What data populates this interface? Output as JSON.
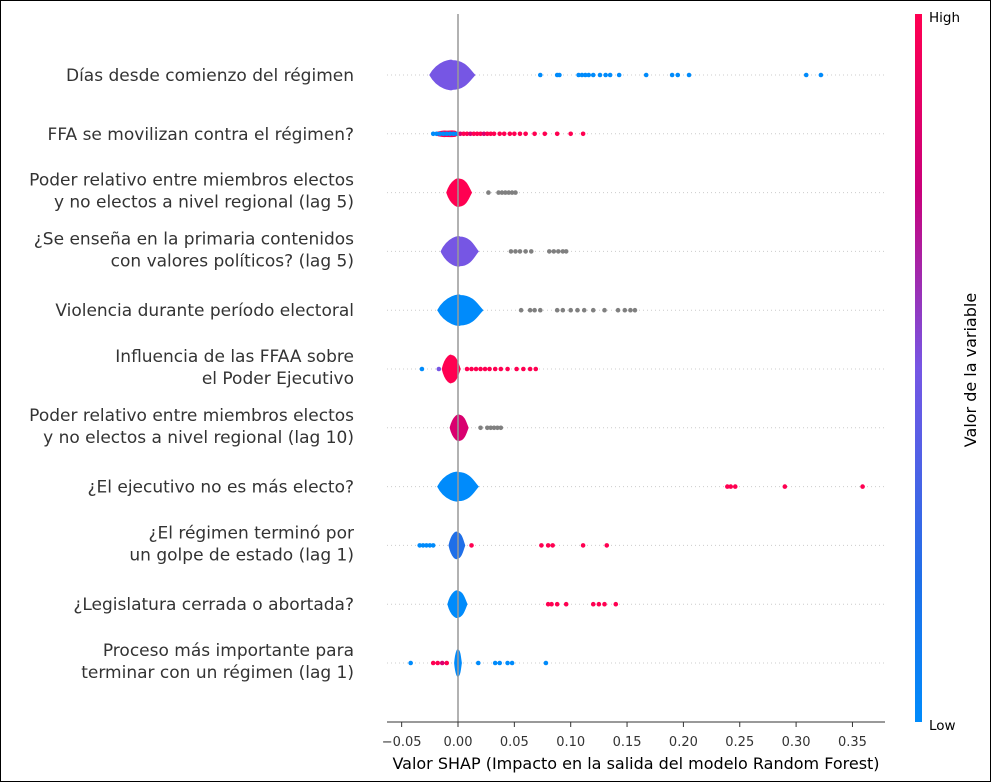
{
  "chart_data": {
    "type": "scatter",
    "subtype": "shap-violin-summary",
    "title": "",
    "xlabel": "Valor SHAP (Impacto en la salida del modelo Random Forest)",
    "ylabel": "",
    "xlim": [
      -0.065,
      0.38
    ],
    "xticks": [
      -0.05,
      0.0,
      0.05,
      0.1,
      0.15,
      0.2,
      0.25,
      0.3,
      0.35
    ],
    "xtick_labels": [
      "−0.05",
      "0.00",
      "0.05",
      "0.10",
      "0.15",
      "0.20",
      "0.25",
      "0.30",
      "0.35"
    ],
    "grid": false,
    "colorbar": {
      "title": "Valor de la variable",
      "high": "High",
      "low": "Low",
      "low_color": "#008bfb",
      "high_color": "#ff0051"
    },
    "features": [
      {
        "label": [
          "Días desde comienzo del régimen"
        ],
        "violin_color": "#7656e4",
        "violin_range": [
          -0.025,
          0.015
        ],
        "violin_width": 0.8,
        "points": [
          [
            0.073,
            "#008bfb"
          ],
          [
            0.088,
            "#008bfb"
          ],
          [
            0.09,
            "#008bfb"
          ],
          [
            0.107,
            "#008bfb"
          ],
          [
            0.11,
            "#008bfb"
          ],
          [
            0.113,
            "#008bfb"
          ],
          [
            0.116,
            "#008bfb"
          ],
          [
            0.12,
            "#008bfb"
          ],
          [
            0.126,
            "#008bfb"
          ],
          [
            0.131,
            "#008bfb"
          ],
          [
            0.135,
            "#008bfb"
          ],
          [
            0.143,
            "#008bfb"
          ],
          [
            0.167,
            "#008bfb"
          ],
          [
            0.19,
            "#008bfb"
          ],
          [
            0.195,
            "#008bfb"
          ],
          [
            0.205,
            "#008bfb"
          ],
          [
            0.309,
            "#008bfb"
          ],
          [
            0.322,
            "#008bfb"
          ]
        ]
      },
      {
        "label": [
          "FFA se movilizan contra el régimen?"
        ],
        "violin_color": "#ff0051",
        "violin_range": [
          -0.022,
          0.0
        ],
        "violin_width": 0.15,
        "points": [
          [
            -0.022,
            "#008bfb"
          ],
          [
            -0.019,
            "#008bfb"
          ],
          [
            -0.016,
            "#008bfb"
          ],
          [
            -0.013,
            "#008bfb"
          ],
          [
            -0.01,
            "#008bfb"
          ],
          [
            -0.007,
            "#008bfb"
          ],
          [
            -0.004,
            "#008bfb"
          ],
          [
            -0.001,
            "#008bfb"
          ],
          [
            0.002,
            "#d9006f"
          ],
          [
            0.005,
            "#ff0051"
          ],
          [
            0.008,
            "#ff0051"
          ],
          [
            0.011,
            "#d9006f"
          ],
          [
            0.014,
            "#ff0051"
          ],
          [
            0.017,
            "#ff0051"
          ],
          [
            0.02,
            "#ff0051"
          ],
          [
            0.023,
            "#d9006f"
          ],
          [
            0.026,
            "#ff0051"
          ],
          [
            0.029,
            "#ff0051"
          ],
          [
            0.032,
            "#ff0051"
          ],
          [
            0.037,
            "#ff0051"
          ],
          [
            0.041,
            "#ff0051"
          ],
          [
            0.046,
            "#ff0051"
          ],
          [
            0.05,
            "#ff0051"
          ],
          [
            0.055,
            "#ff0051"
          ],
          [
            0.06,
            "#ff0051"
          ],
          [
            0.068,
            "#ff0051"
          ],
          [
            0.077,
            "#ff0051"
          ],
          [
            0.088,
            "#ff0051"
          ],
          [
            0.1,
            "#ff0051"
          ],
          [
            0.111,
            "#ff0051"
          ]
        ]
      },
      {
        "label": [
          "Poder relativo entre miembros electos",
          "y no electos a nivel regional (lag 5)"
        ],
        "violin_color": "#ff0051",
        "violin_range": [
          -0.01,
          0.012
        ],
        "violin_width": 0.75,
        "points": [
          [
            0.027,
            "#808080"
          ],
          [
            0.036,
            "#808080"
          ],
          [
            0.039,
            "#808080"
          ],
          [
            0.042,
            "#808080"
          ],
          [
            0.045,
            "#808080"
          ],
          [
            0.048,
            "#808080"
          ],
          [
            0.051,
            "#808080"
          ]
        ]
      },
      {
        "label": [
          "¿Se enseña en la primaria contenidos",
          "con valores políticos? (lag 5)"
        ],
        "violin_color": "#7656e4",
        "violin_range": [
          -0.015,
          0.018
        ],
        "violin_width": 0.8,
        "points": [
          [
            0.047,
            "#808080"
          ],
          [
            0.051,
            "#808080"
          ],
          [
            0.055,
            "#808080"
          ],
          [
            0.06,
            "#808080"
          ],
          [
            0.065,
            "#808080"
          ],
          [
            0.081,
            "#808080"
          ],
          [
            0.085,
            "#808080"
          ],
          [
            0.089,
            "#808080"
          ],
          [
            0.093,
            "#808080"
          ],
          [
            0.096,
            "#808080"
          ]
        ]
      },
      {
        "label": [
          "Violencia durante período electoral"
        ],
        "violin_color": "#008bfb",
        "violin_range": [
          -0.018,
          0.022
        ],
        "violin_width": 0.82,
        "points": [
          [
            0.056,
            "#808080"
          ],
          [
            0.064,
            "#808080"
          ],
          [
            0.068,
            "#808080"
          ],
          [
            0.073,
            "#808080"
          ],
          [
            0.088,
            "#808080"
          ],
          [
            0.093,
            "#808080"
          ],
          [
            0.1,
            "#808080"
          ],
          [
            0.106,
            "#808080"
          ],
          [
            0.112,
            "#808080"
          ],
          [
            0.12,
            "#808080"
          ],
          [
            0.13,
            "#808080"
          ],
          [
            0.142,
            "#808080"
          ],
          [
            0.148,
            "#808080"
          ],
          [
            0.153,
            "#808080"
          ],
          [
            0.157,
            "#808080"
          ]
        ]
      },
      {
        "label": [
          "Influencia de las FFAA sobre",
          "el Poder Ejecutivo"
        ],
        "violin_color": "#ff0051",
        "violin_range": [
          -0.014,
          0.002
        ],
        "violin_width": 0.75,
        "points": [
          [
            -0.032,
            "#008bfb"
          ],
          [
            -0.017,
            "#7656e4"
          ],
          [
            0.008,
            "#ff0051"
          ],
          [
            0.012,
            "#ff0051"
          ],
          [
            0.016,
            "#ff0051"
          ],
          [
            0.02,
            "#ff0051"
          ],
          [
            0.024,
            "#ff0051"
          ],
          [
            0.028,
            "#ff0051"
          ],
          [
            0.033,
            "#ff0051"
          ],
          [
            0.038,
            "#ff0051"
          ],
          [
            0.044,
            "#ff0051"
          ],
          [
            0.052,
            "#ff0051"
          ],
          [
            0.058,
            "#ff0051"
          ],
          [
            0.064,
            "#ff0051"
          ],
          [
            0.069,
            "#ff0051"
          ]
        ]
      },
      {
        "label": [
          "Poder relativo entre miembros electos",
          "y no electos a nivel regional (lag 10)"
        ],
        "violin_color": "#d9006f",
        "violin_range": [
          -0.007,
          0.009
        ],
        "violin_width": 0.7,
        "points": [
          [
            0.02,
            "#808080"
          ],
          [
            0.026,
            "#808080"
          ],
          [
            0.029,
            "#808080"
          ],
          [
            0.032,
            "#808080"
          ],
          [
            0.035,
            "#808080"
          ],
          [
            0.038,
            "#808080"
          ]
        ]
      },
      {
        "label": [
          "¿El ejecutivo no es más electo?"
        ],
        "violin_color": "#008bfb",
        "violin_range": [
          -0.018,
          0.018
        ],
        "violin_width": 0.78,
        "points": [
          [
            0.239,
            "#ff0051"
          ],
          [
            0.242,
            "#ff0051"
          ],
          [
            0.246,
            "#ff0051"
          ],
          [
            0.29,
            "#ff0051"
          ],
          [
            0.359,
            "#ff0051"
          ]
        ]
      },
      {
        "label": [
          "¿El régimen terminó por",
          "un golpe de estado (lag 1)"
        ],
        "violin_color": "#1f6fe8",
        "violin_range": [
          -0.008,
          0.006
        ],
        "violin_width": 0.72,
        "points": [
          [
            -0.034,
            "#008bfb"
          ],
          [
            -0.031,
            "#008bfb"
          ],
          [
            -0.028,
            "#008bfb"
          ],
          [
            -0.025,
            "#008bfb"
          ],
          [
            -0.022,
            "#008bfb"
          ],
          [
            0.012,
            "#ff0051"
          ],
          [
            0.074,
            "#ff0051"
          ],
          [
            0.08,
            "#ff0051"
          ],
          [
            0.084,
            "#ff0051"
          ],
          [
            0.111,
            "#ff0051"
          ],
          [
            0.132,
            "#ff0051"
          ]
        ]
      },
      {
        "label": [
          "¿Legislatura cerrada o abortada?"
        ],
        "violin_color": "#008bfb",
        "violin_range": [
          -0.009,
          0.008
        ],
        "violin_width": 0.72,
        "points": [
          [
            0.08,
            "#ff0051"
          ],
          [
            0.083,
            "#ff0051"
          ],
          [
            0.088,
            "#ff0051"
          ],
          [
            0.096,
            "#ff0051"
          ],
          [
            0.12,
            "#ff0051"
          ],
          [
            0.125,
            "#ff0051"
          ],
          [
            0.13,
            "#ff0051"
          ],
          [
            0.14,
            "#ff0051"
          ]
        ]
      },
      {
        "label": [
          "Proceso más importante para",
          "terminar con un régimen (lag 1)"
        ],
        "violin_color": "#008bfb",
        "violin_range": [
          -0.003,
          0.003
        ],
        "violin_width": 0.72,
        "points": [
          [
            -0.042,
            "#008bfb"
          ],
          [
            -0.022,
            "#ff0051"
          ],
          [
            -0.018,
            "#ff0051"
          ],
          [
            -0.014,
            "#d9006f"
          ],
          [
            -0.01,
            "#ff0051"
          ],
          [
            0.018,
            "#008bfb"
          ],
          [
            0.033,
            "#008bfb"
          ],
          [
            0.037,
            "#008bfb"
          ],
          [
            0.044,
            "#008bfb"
          ],
          [
            0.048,
            "#008bfb"
          ],
          [
            0.078,
            "#008bfb"
          ]
        ]
      }
    ]
  }
}
